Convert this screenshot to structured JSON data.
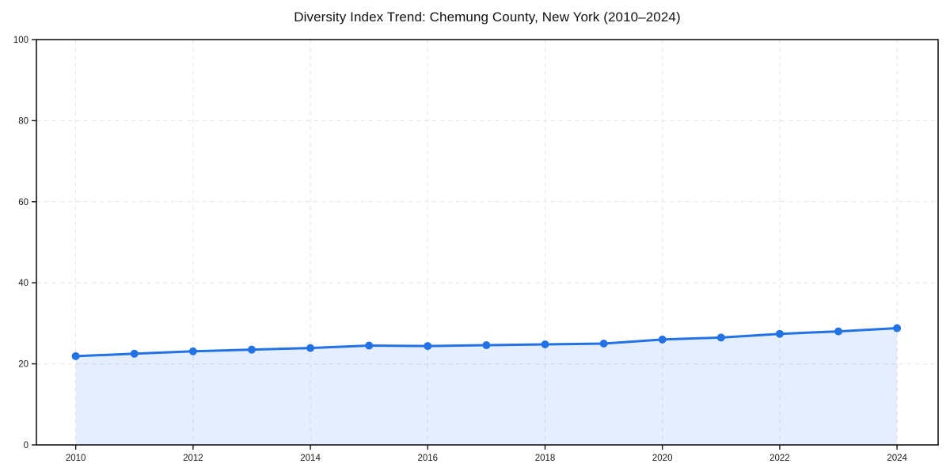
{
  "chart_data": {
    "type": "line",
    "title": "Diversity Index Trend: Chemung County, New York (2010–2024)",
    "xlabel": "",
    "ylabel": "",
    "x": [
      2010,
      2011,
      2012,
      2013,
      2014,
      2015,
      2016,
      2017,
      2018,
      2019,
      2020,
      2021,
      2022,
      2023,
      2024
    ],
    "series": [
      {
        "name": "Diversity Index",
        "values": [
          21.9,
          22.5,
          23.1,
          23.5,
          23.9,
          24.5,
          24.4,
          24.6,
          24.8,
          25.0,
          26.0,
          26.5,
          27.4,
          28.0,
          28.8
        ],
        "line_color": "#2272e5",
        "marker": "circle",
        "area_fill": true,
        "area_color": "rgba(34,114,229,0.12)"
      }
    ],
    "xticks": [
      2010,
      2012,
      2014,
      2016,
      2018,
      2020,
      2022,
      2024
    ],
    "yticks": [
      0,
      20,
      40,
      60,
      80,
      100
    ],
    "xlim": [
      2009.33,
      2024.7
    ],
    "ylim": [
      0,
      100
    ],
    "grid": "dashed",
    "grid_color": "#e4e4e4",
    "spine_color": "#141414",
    "tick_label_color": "#1a1a1a",
    "legend": "none",
    "background": "#ffffff"
  }
}
